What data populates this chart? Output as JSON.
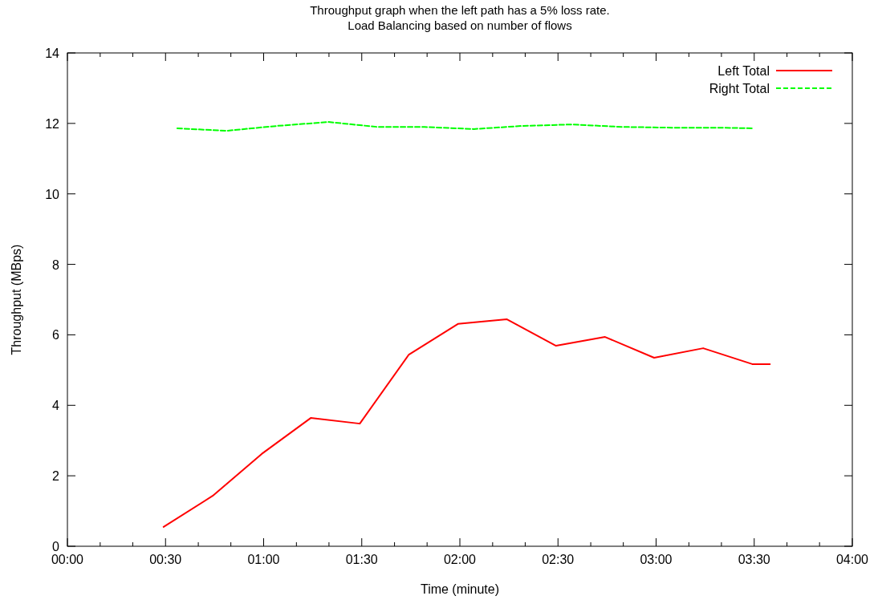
{
  "chart_data": {
    "type": "line",
    "title": "Throughput graph when the left path has a 5% loss rate.",
    "subtitle": "Load Balancing based on number of flows",
    "xlabel": "Time (minute)",
    "ylabel": "Throughput (MBps)",
    "xlim": [
      0,
      4
    ],
    "ylim": [
      0,
      14
    ],
    "xticks": [
      {
        "value": 0,
        "label": "00:00"
      },
      {
        "value": 0.167,
        "label": null
      },
      {
        "value": 0.333,
        "label": null
      },
      {
        "value": 0.5,
        "label": "00:30"
      },
      {
        "value": 0.667,
        "label": null
      },
      {
        "value": 0.833,
        "label": null
      },
      {
        "value": 1,
        "label": "01:00"
      },
      {
        "value": 1.167,
        "label": null
      },
      {
        "value": 1.333,
        "label": null
      },
      {
        "value": 1.5,
        "label": "01:30"
      },
      {
        "value": 1.667,
        "label": null
      },
      {
        "value": 1.833,
        "label": null
      },
      {
        "value": 2,
        "label": "02:00"
      },
      {
        "value": 2.167,
        "label": null
      },
      {
        "value": 2.333,
        "label": null
      },
      {
        "value": 2.5,
        "label": "02:30"
      },
      {
        "value": 2.667,
        "label": null
      },
      {
        "value": 2.833,
        "label": null
      },
      {
        "value": 3,
        "label": "03:00"
      },
      {
        "value": 3.167,
        "label": null
      },
      {
        "value": 3.333,
        "label": null
      },
      {
        "value": 3.5,
        "label": "03:30"
      },
      {
        "value": 3.667,
        "label": null
      },
      {
        "value": 3.833,
        "label": null
      },
      {
        "value": 4,
        "label": "04:00"
      }
    ],
    "yticks": [
      0,
      2,
      4,
      6,
      8,
      10,
      12,
      14
    ],
    "grid": false,
    "legend": "top right",
    "marker": "none",
    "series": [
      {
        "name": "Left Total",
        "color": "#ff0000",
        "line_style": "solid",
        "x": [
          0.49,
          0.74,
          0.99,
          1.24,
          1.49,
          1.74,
          1.99,
          2.24,
          2.49,
          2.74,
          2.99,
          3.24,
          3.49,
          3.58
        ],
        "values": [
          0.55,
          1.43,
          2.62,
          3.64,
          3.48,
          5.44,
          6.31,
          6.44,
          5.69,
          5.94,
          5.35,
          5.62,
          5.17,
          5.17
        ]
      },
      {
        "name": "Right Total",
        "color": "#00ff00",
        "line_style": "dashed",
        "x": [
          0.56,
          0.81,
          1.07,
          1.33,
          1.58,
          1.82,
          2.07,
          2.32,
          2.57,
          2.83,
          3.08,
          3.33,
          3.49
        ],
        "values": [
          11.86,
          11.79,
          11.93,
          12.04,
          11.9,
          11.9,
          11.84,
          11.93,
          11.97,
          11.9,
          11.88,
          11.88,
          11.86
        ]
      }
    ]
  }
}
